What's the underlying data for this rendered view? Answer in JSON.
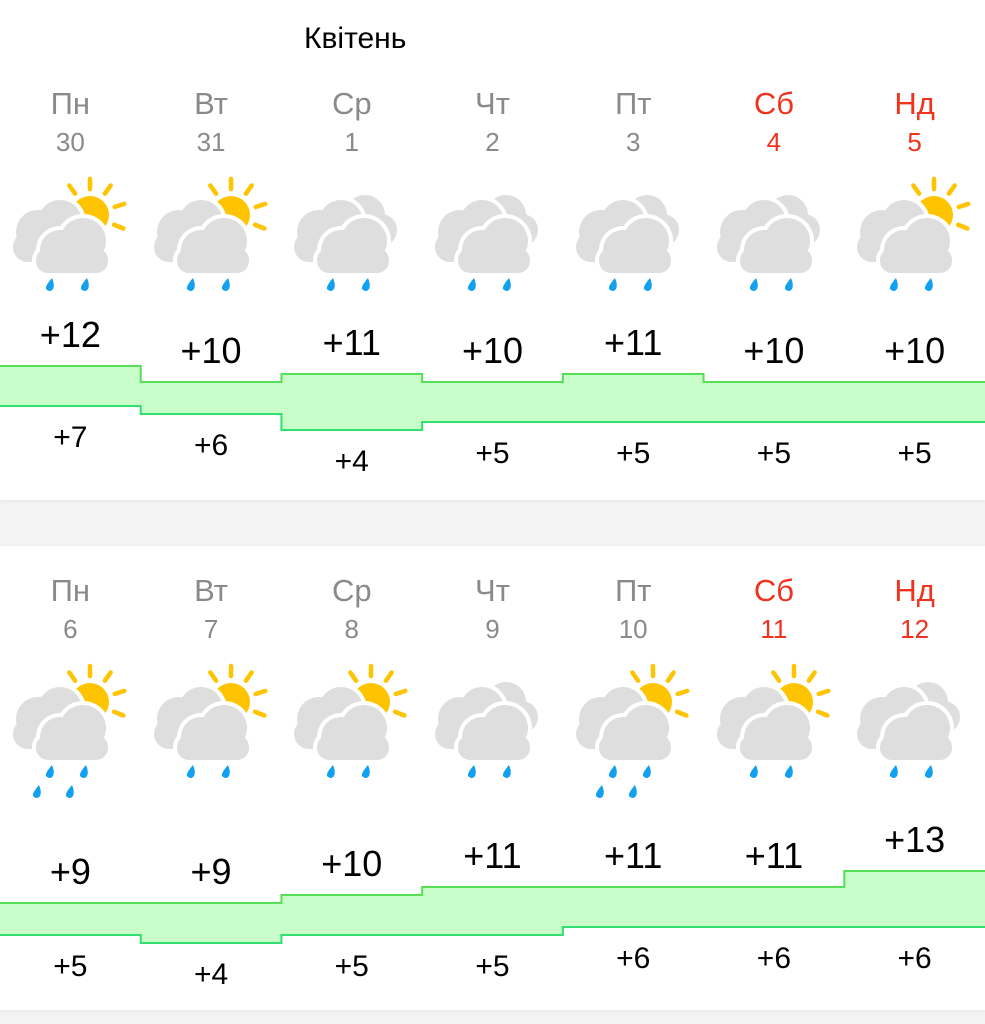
{
  "month_title": "Квітень",
  "colors": {
    "weekend": "#f0321e",
    "weekday": "#8a8a8a",
    "band_fill": "#c8fcc8",
    "band_stroke": "#55e055",
    "sun": "#ffc400",
    "cloud": "#dedede",
    "drop": "#12a0f0"
  },
  "weeks": [
    {
      "days": [
        {
          "name": "Пн",
          "date": "30",
          "weekend": false,
          "icon": "sun-cloud-rain-icon",
          "high": "+12",
          "low": "+7",
          "hi": 12,
          "lo": 7
        },
        {
          "name": "Вт",
          "date": "31",
          "weekend": false,
          "icon": "sun-cloud-rain-icon",
          "high": "+10",
          "low": "+6",
          "hi": 10,
          "lo": 6
        },
        {
          "name": "Ср",
          "date": "1",
          "weekend": false,
          "icon": "cloudy-rain-icon",
          "high": "+11",
          "low": "+4",
          "hi": 11,
          "lo": 4
        },
        {
          "name": "Чт",
          "date": "2",
          "weekend": false,
          "icon": "cloudy-rain-icon",
          "high": "+10",
          "low": "+5",
          "hi": 10,
          "lo": 5
        },
        {
          "name": "Пт",
          "date": "3",
          "weekend": false,
          "icon": "cloudy-rain-icon",
          "high": "+11",
          "low": "+5",
          "hi": 11,
          "lo": 5
        },
        {
          "name": "Сб",
          "date": "4",
          "weekend": true,
          "icon": "cloudy-rain-icon",
          "high": "+10",
          "low": "+5",
          "hi": 10,
          "lo": 5
        },
        {
          "name": "Нд",
          "date": "5",
          "weekend": true,
          "icon": "sun-cloud-rain-icon",
          "high": "+10",
          "low": "+5",
          "hi": 10,
          "lo": 5
        }
      ]
    },
    {
      "days": [
        {
          "name": "Пн",
          "date": "6",
          "weekend": false,
          "icon": "sun-cloud-heavy-rain-icon",
          "high": "+9",
          "low": "+5",
          "hi": 9,
          "lo": 5
        },
        {
          "name": "Вт",
          "date": "7",
          "weekend": false,
          "icon": "sun-cloud-rain-icon",
          "high": "+9",
          "low": "+4",
          "hi": 9,
          "lo": 4
        },
        {
          "name": "Ср",
          "date": "8",
          "weekend": false,
          "icon": "sun-cloud-rain-icon",
          "high": "+10",
          "low": "+5",
          "hi": 10,
          "lo": 5
        },
        {
          "name": "Чт",
          "date": "9",
          "weekend": false,
          "icon": "cloudy-rain-icon",
          "high": "+11",
          "low": "+5",
          "hi": 11,
          "lo": 5
        },
        {
          "name": "Пт",
          "date": "10",
          "weekend": false,
          "icon": "sun-cloud-heavy-rain-icon",
          "high": "+11",
          "low": "+6",
          "hi": 11,
          "lo": 6
        },
        {
          "name": "Сб",
          "date": "11",
          "weekend": true,
          "icon": "sun-cloud-rain-icon",
          "high": "+11",
          "low": "+6",
          "hi": 11,
          "lo": 6
        },
        {
          "name": "Нд",
          "date": "12",
          "weekend": true,
          "icon": "cloudy-rain-icon",
          "high": "+13",
          "low": "+6",
          "hi": 13,
          "lo": 6
        }
      ]
    }
  ]
}
